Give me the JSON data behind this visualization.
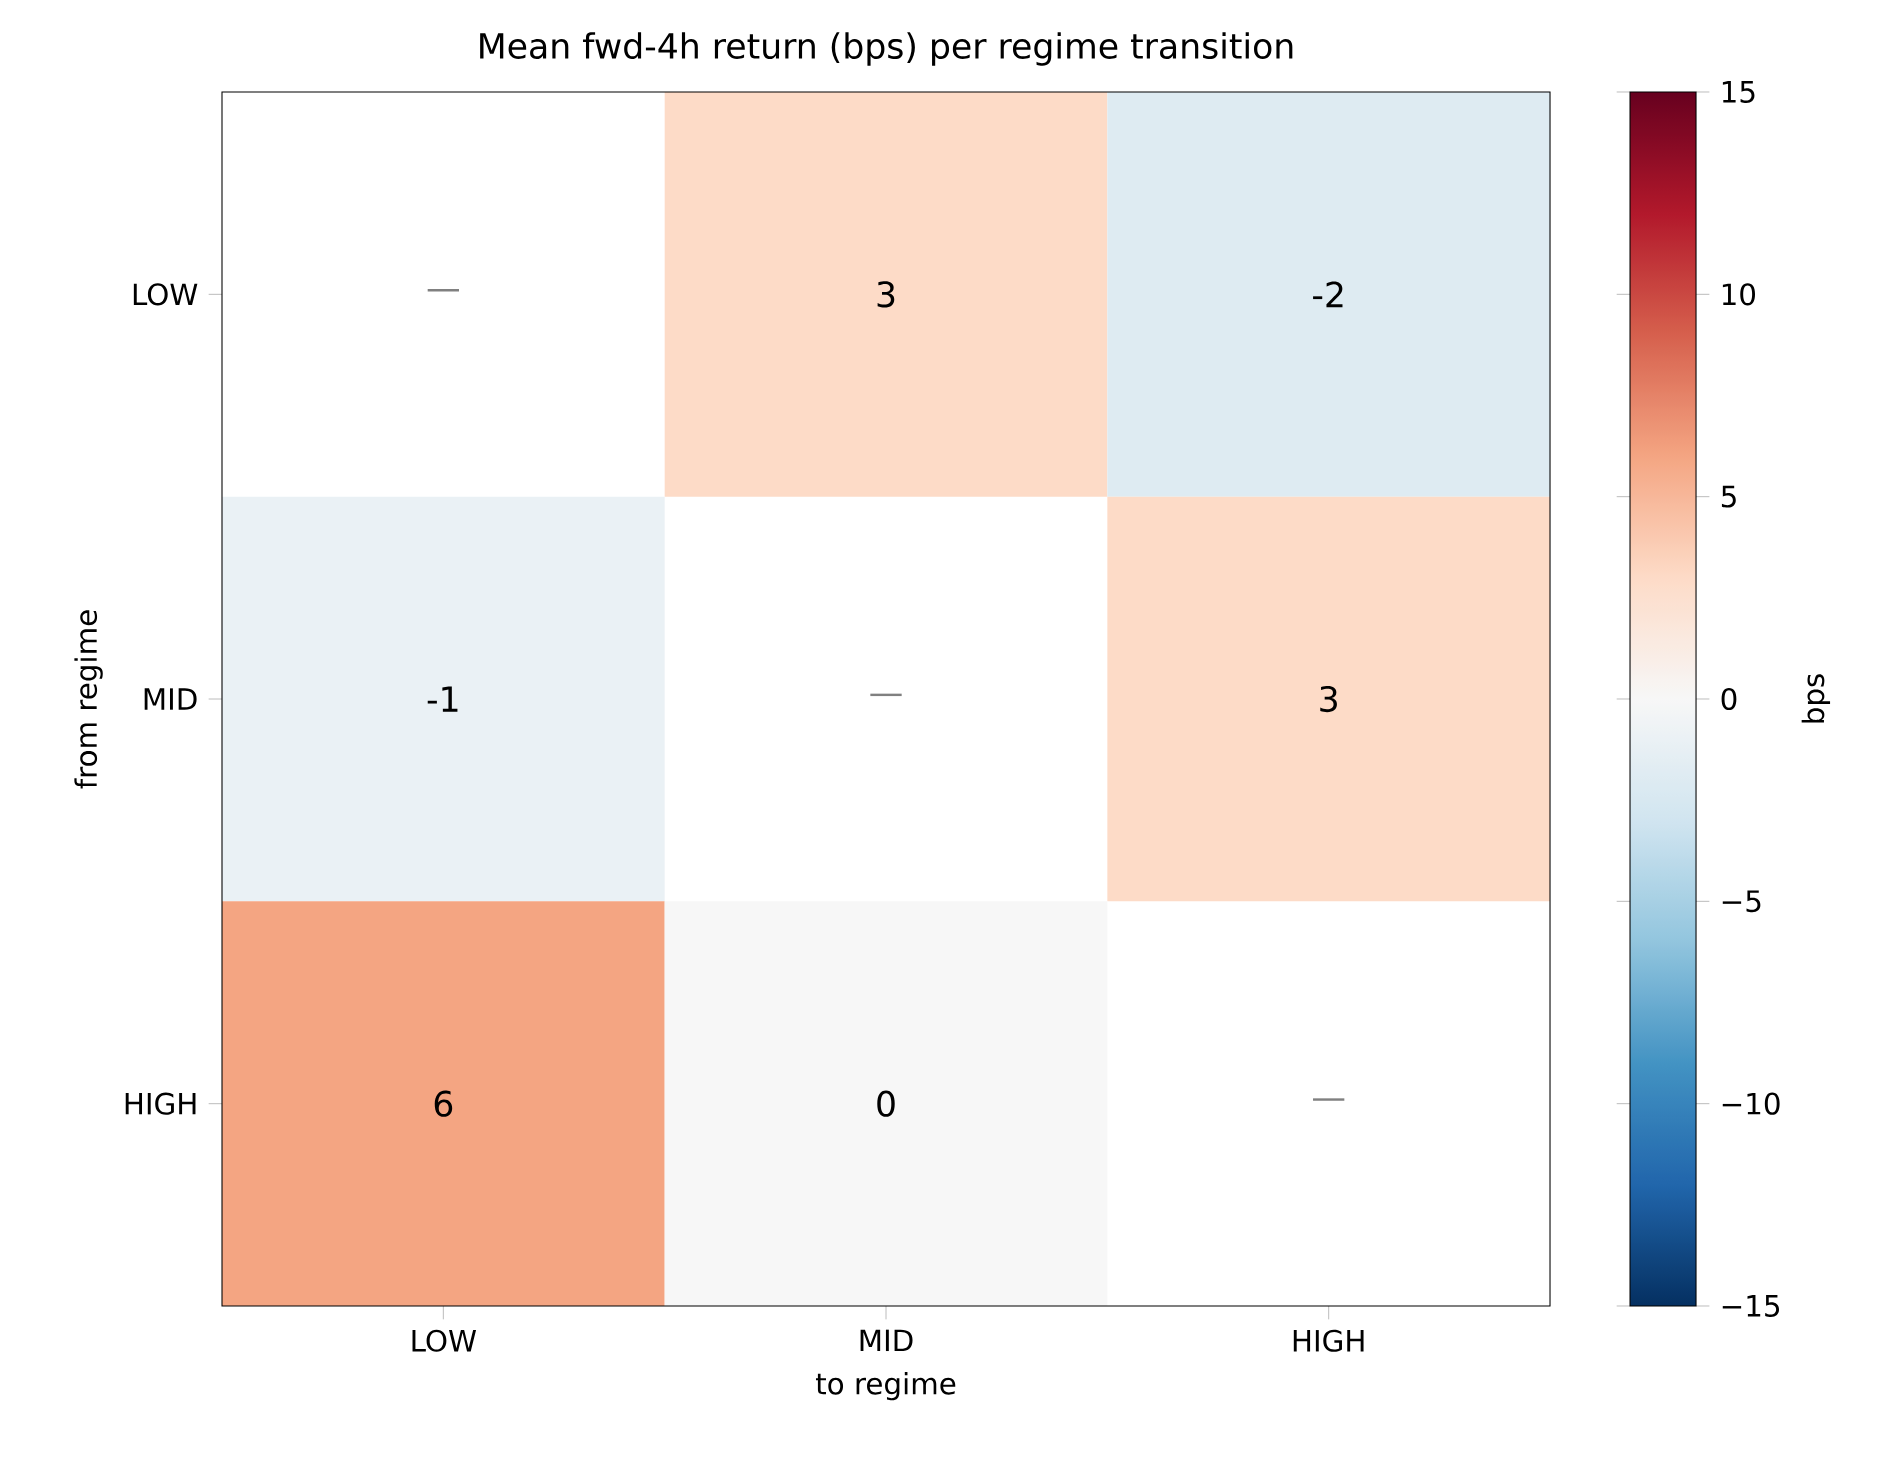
{
  "chart_data": {
    "type": "heatmap",
    "title": "Mean fwd-4h return (bps) per regime transition",
    "xlabel": "to regime",
    "ylabel": "from regime",
    "clabel": "bps",
    "categories": [
      "LOW",
      "MID",
      "HIGH"
    ],
    "y_categories": [
      "LOW",
      "MID",
      "HIGH"
    ],
    "cells": [
      [
        null,
        3,
        -2
      ],
      [
        -1,
        null,
        3
      ],
      [
        6,
        0,
        null
      ]
    ],
    "cell_labels": [
      [
        "—",
        "3",
        "-2"
      ],
      [
        "-1",
        "—",
        "3"
      ],
      [
        "6",
        "0",
        "—"
      ]
    ],
    "clim": [
      -15,
      15
    ],
    "cticks": [
      {
        "value": -15,
        "label": "−15"
      },
      {
        "value": -10,
        "label": "−10"
      },
      {
        "value": -5,
        "label": "−5"
      },
      0,
      5,
      10,
      15
    ]
  }
}
